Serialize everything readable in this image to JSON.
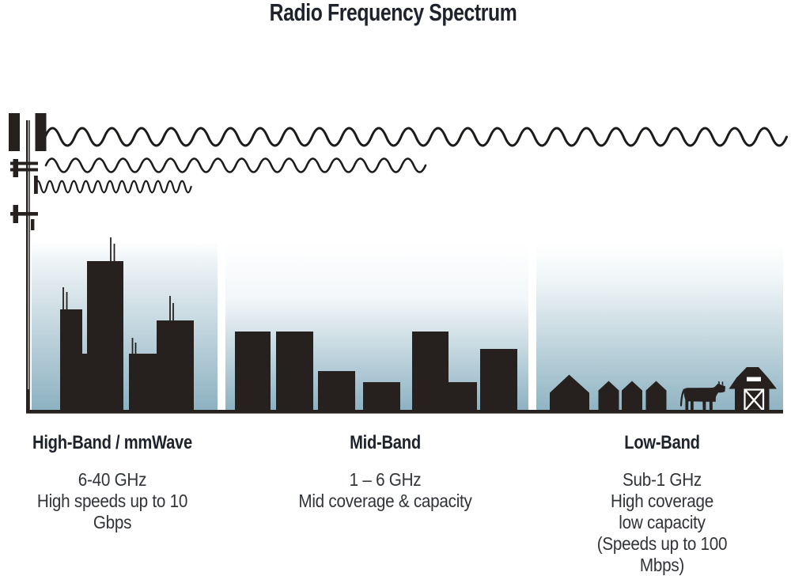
{
  "title": "Radio Frequency Spectrum",
  "bands": [
    {
      "id": "high-band",
      "heading": "High-Band / mmWave",
      "lines": [
        "6-40 GHz",
        "High speeds up to 10 Gbps"
      ]
    },
    {
      "id": "mid-band",
      "heading": "Mid-Band",
      "lines": [
        "1 – 6 GHz",
        "Mid coverage & capacity"
      ]
    },
    {
      "id": "low-band",
      "heading": "Low-Band",
      "lines": [
        "Sub-1 GHz",
        "High coverage",
        "low capacity",
        "(Speeds up to 100 Mbps)"
      ]
    }
  ],
  "icons": [
    "cell-tower-icon",
    "wave-long-low-frequency-icon",
    "wave-medium-mid-frequency-icon",
    "wave-short-high-frequency-icon",
    "city-skyline-icon",
    "midrise-buildings-icon",
    "house-icon",
    "cow-icon",
    "barn-icon"
  ],
  "colors": {
    "ink": "#26211e",
    "wave": "#1b1b19",
    "sky_top": "#ffffff",
    "sky_bottom": "#8cb1c1",
    "heading_text": "#1e222b",
    "body_text": "#303338"
  }
}
